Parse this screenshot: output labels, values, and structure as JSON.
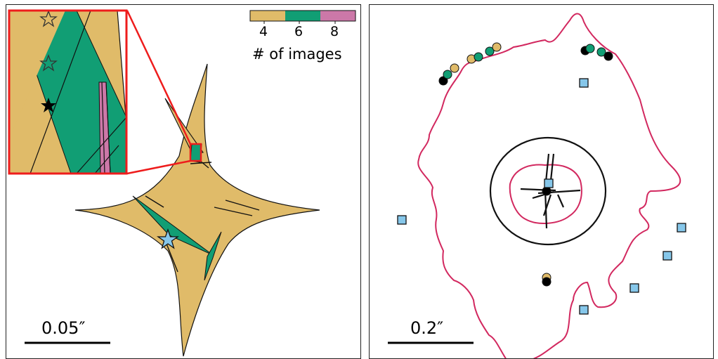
{
  "left_panel": {
    "scalebar_label": "0.05″",
    "colorbar": {
      "ticks": [
        "4",
        "6",
        "8"
      ],
      "title": "# of images",
      "colors": [
        "#e0bb69",
        "#119e74",
        "#cc78a8"
      ]
    },
    "caustic_fill": "#e0bb69",
    "high_mag_fill": "#119e74",
    "eight_image_fill": "#cc78a8",
    "source_marker_color": "#86c7ea",
    "inset_border_color": "#ee1c1c"
  },
  "right_panel": {
    "scalebar_label": "0.2″",
    "critical_curve_color": "#d2285f",
    "square_marker_color": "#86c7ea",
    "image_colors": [
      "#e0bb69",
      "#119e74",
      "#000000"
    ]
  }
}
